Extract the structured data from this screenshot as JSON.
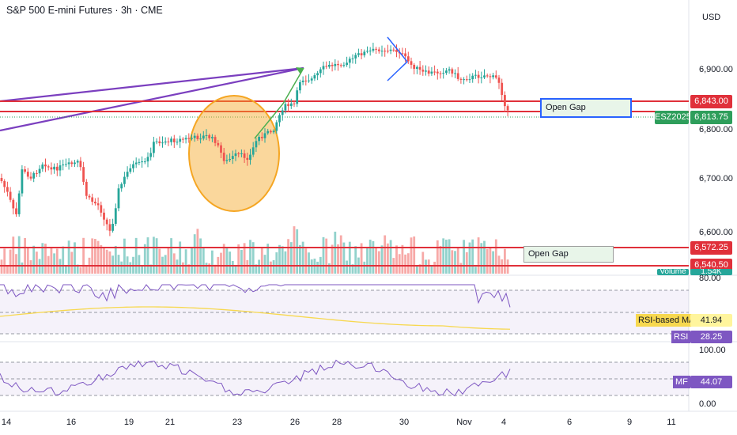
{
  "header": {
    "title": "S&P 500 E-mini Futures · 3h · CME",
    "currency": "USD"
  },
  "price_axis": {
    "ticks": [
      "6,900.00",
      "6,800.00",
      "6,700.00",
      "6,600.00"
    ]
  },
  "date_axis": {
    "ticks": [
      "14",
      "16",
      "19",
      "21",
      "23",
      "26",
      "28",
      "30",
      "Nov",
      "4",
      "6",
      "9",
      "11"
    ]
  },
  "price_labels": {
    "gap_upper": "6,843.00",
    "current_symbol": "ESZ2025",
    "current": "6,813.75",
    "gap_lower": "6,572.25",
    "gap_lower2": "6,540.50",
    "volume_label": "Volume",
    "volume_value": "1.54K"
  },
  "annotations": {
    "open_gap_upper": "Open Gap",
    "open_gap_lower": "Open Gap"
  },
  "rsi": {
    "axis_ticks": [
      "80.00"
    ],
    "ma_label": "RSI-based MA",
    "ma_value": "41.94",
    "label": "RSI",
    "value": "28.25"
  },
  "mfi": {
    "axis_ticks": [
      "100.00",
      "0.00"
    ],
    "label": "MF",
    "value": "44.07"
  },
  "colors": {
    "up": "#26a69a",
    "down": "#ef5350",
    "gap_line": "#e0303a",
    "trend": "#7b3fbf",
    "circle": "#f5a623",
    "rsi_line": "#7e57c2",
    "rsi_ma": "#f7d84f",
    "current": "#2e9e5b",
    "gap_box_border": "#2962ff"
  }
}
